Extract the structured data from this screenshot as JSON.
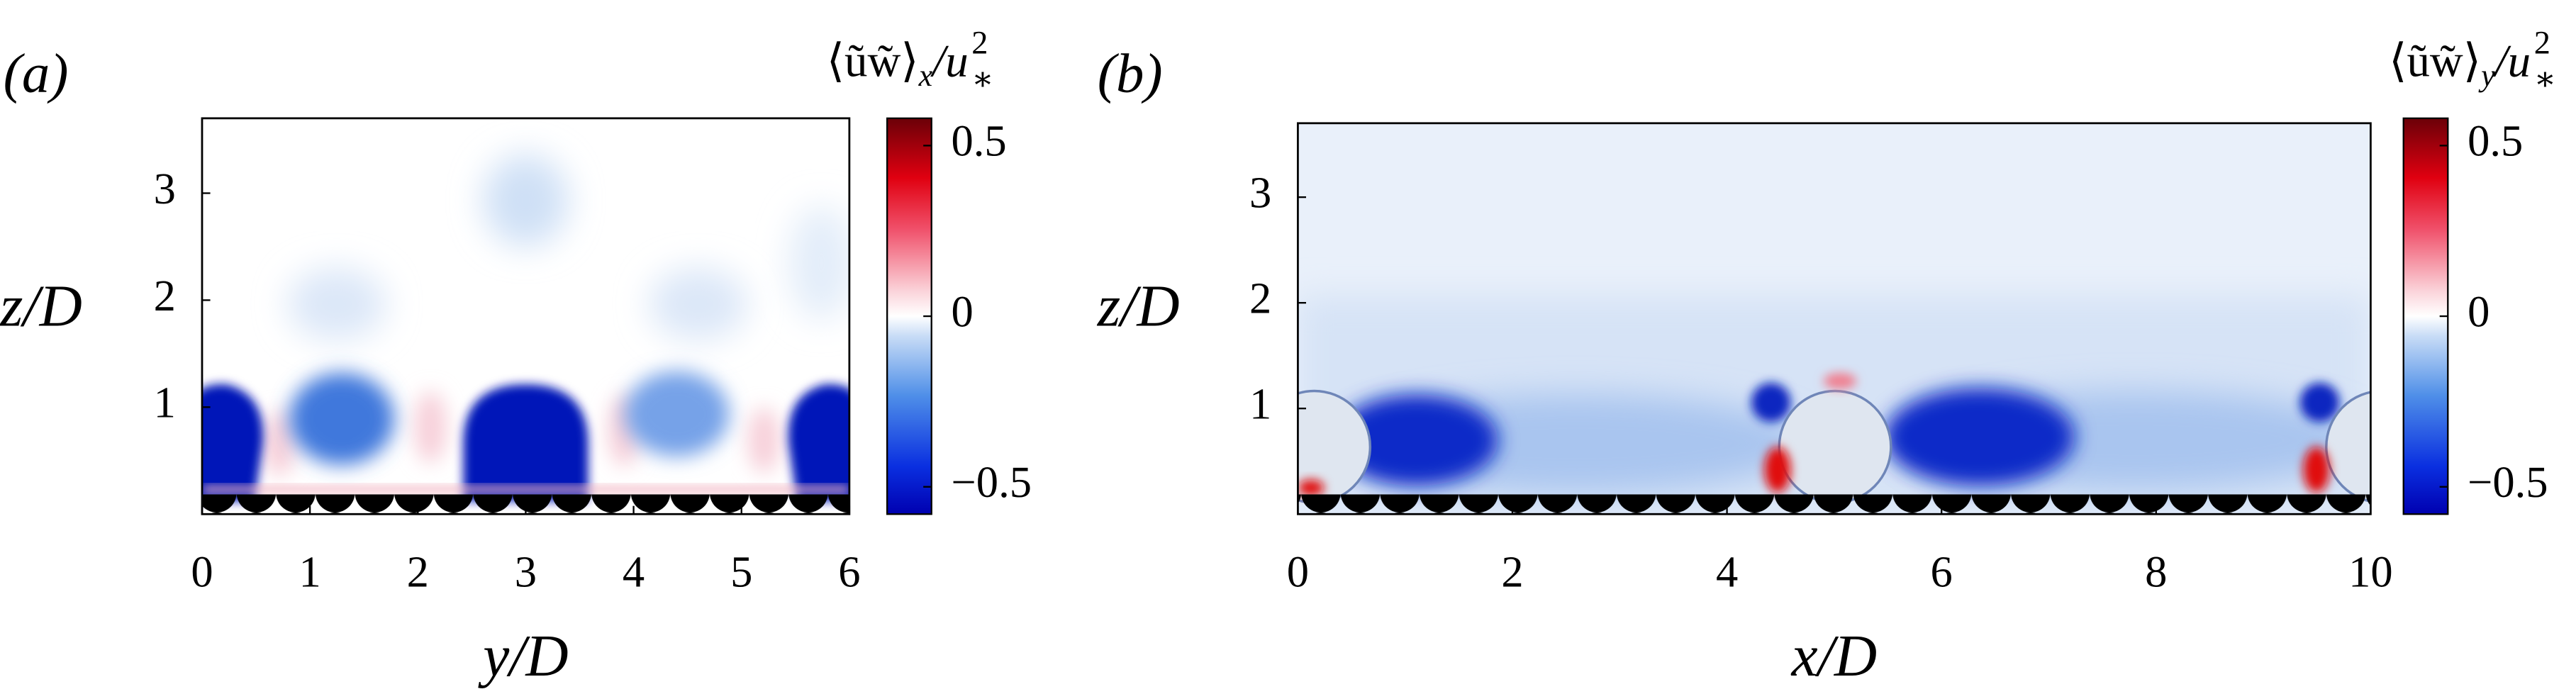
{
  "chart_data": [
    {
      "type": "heatmap",
      "panel_label": "(a)",
      "xlabel": "y/D",
      "ylabel": "z/D",
      "xlim": [
        0,
        6
      ],
      "xticks": [
        0,
        1,
        2,
        3,
        4,
        5,
        6
      ],
      "ylim": [
        0,
        3.7
      ],
      "yticks": [
        1,
        2,
        3
      ],
      "colorbar": {
        "label": {
          "base": "⟨ũw̃⟩",
          "sub": "x",
          "mid": "/u",
          "sup": "2",
          "lowsub": "∗"
        },
        "lim": [
          -0.58,
          0.58
        ],
        "ticks": [
          {
            "value": -0.5,
            "label": "−0.5"
          },
          0,
          0.5
        ]
      }
    },
    {
      "type": "heatmap",
      "panel_label": "(b)",
      "xlabel": "x/D",
      "ylabel": "z/D",
      "xlim": [
        0,
        10
      ],
      "xticks": [
        0,
        2,
        4,
        6,
        8,
        10
      ],
      "ylim": [
        0,
        3.7
      ],
      "yticks": [
        1,
        2,
        3
      ],
      "colorbar": {
        "label": {
          "base": "⟨ũw̃⟩",
          "sub": "y",
          "mid": "/u",
          "sup": "2",
          "lowsub": "∗"
        },
        "lim": [
          -0.58,
          0.58
        ],
        "ticks": [
          {
            "value": -0.5,
            "label": "−0.5"
          },
          0,
          0.5
        ]
      }
    }
  ]
}
